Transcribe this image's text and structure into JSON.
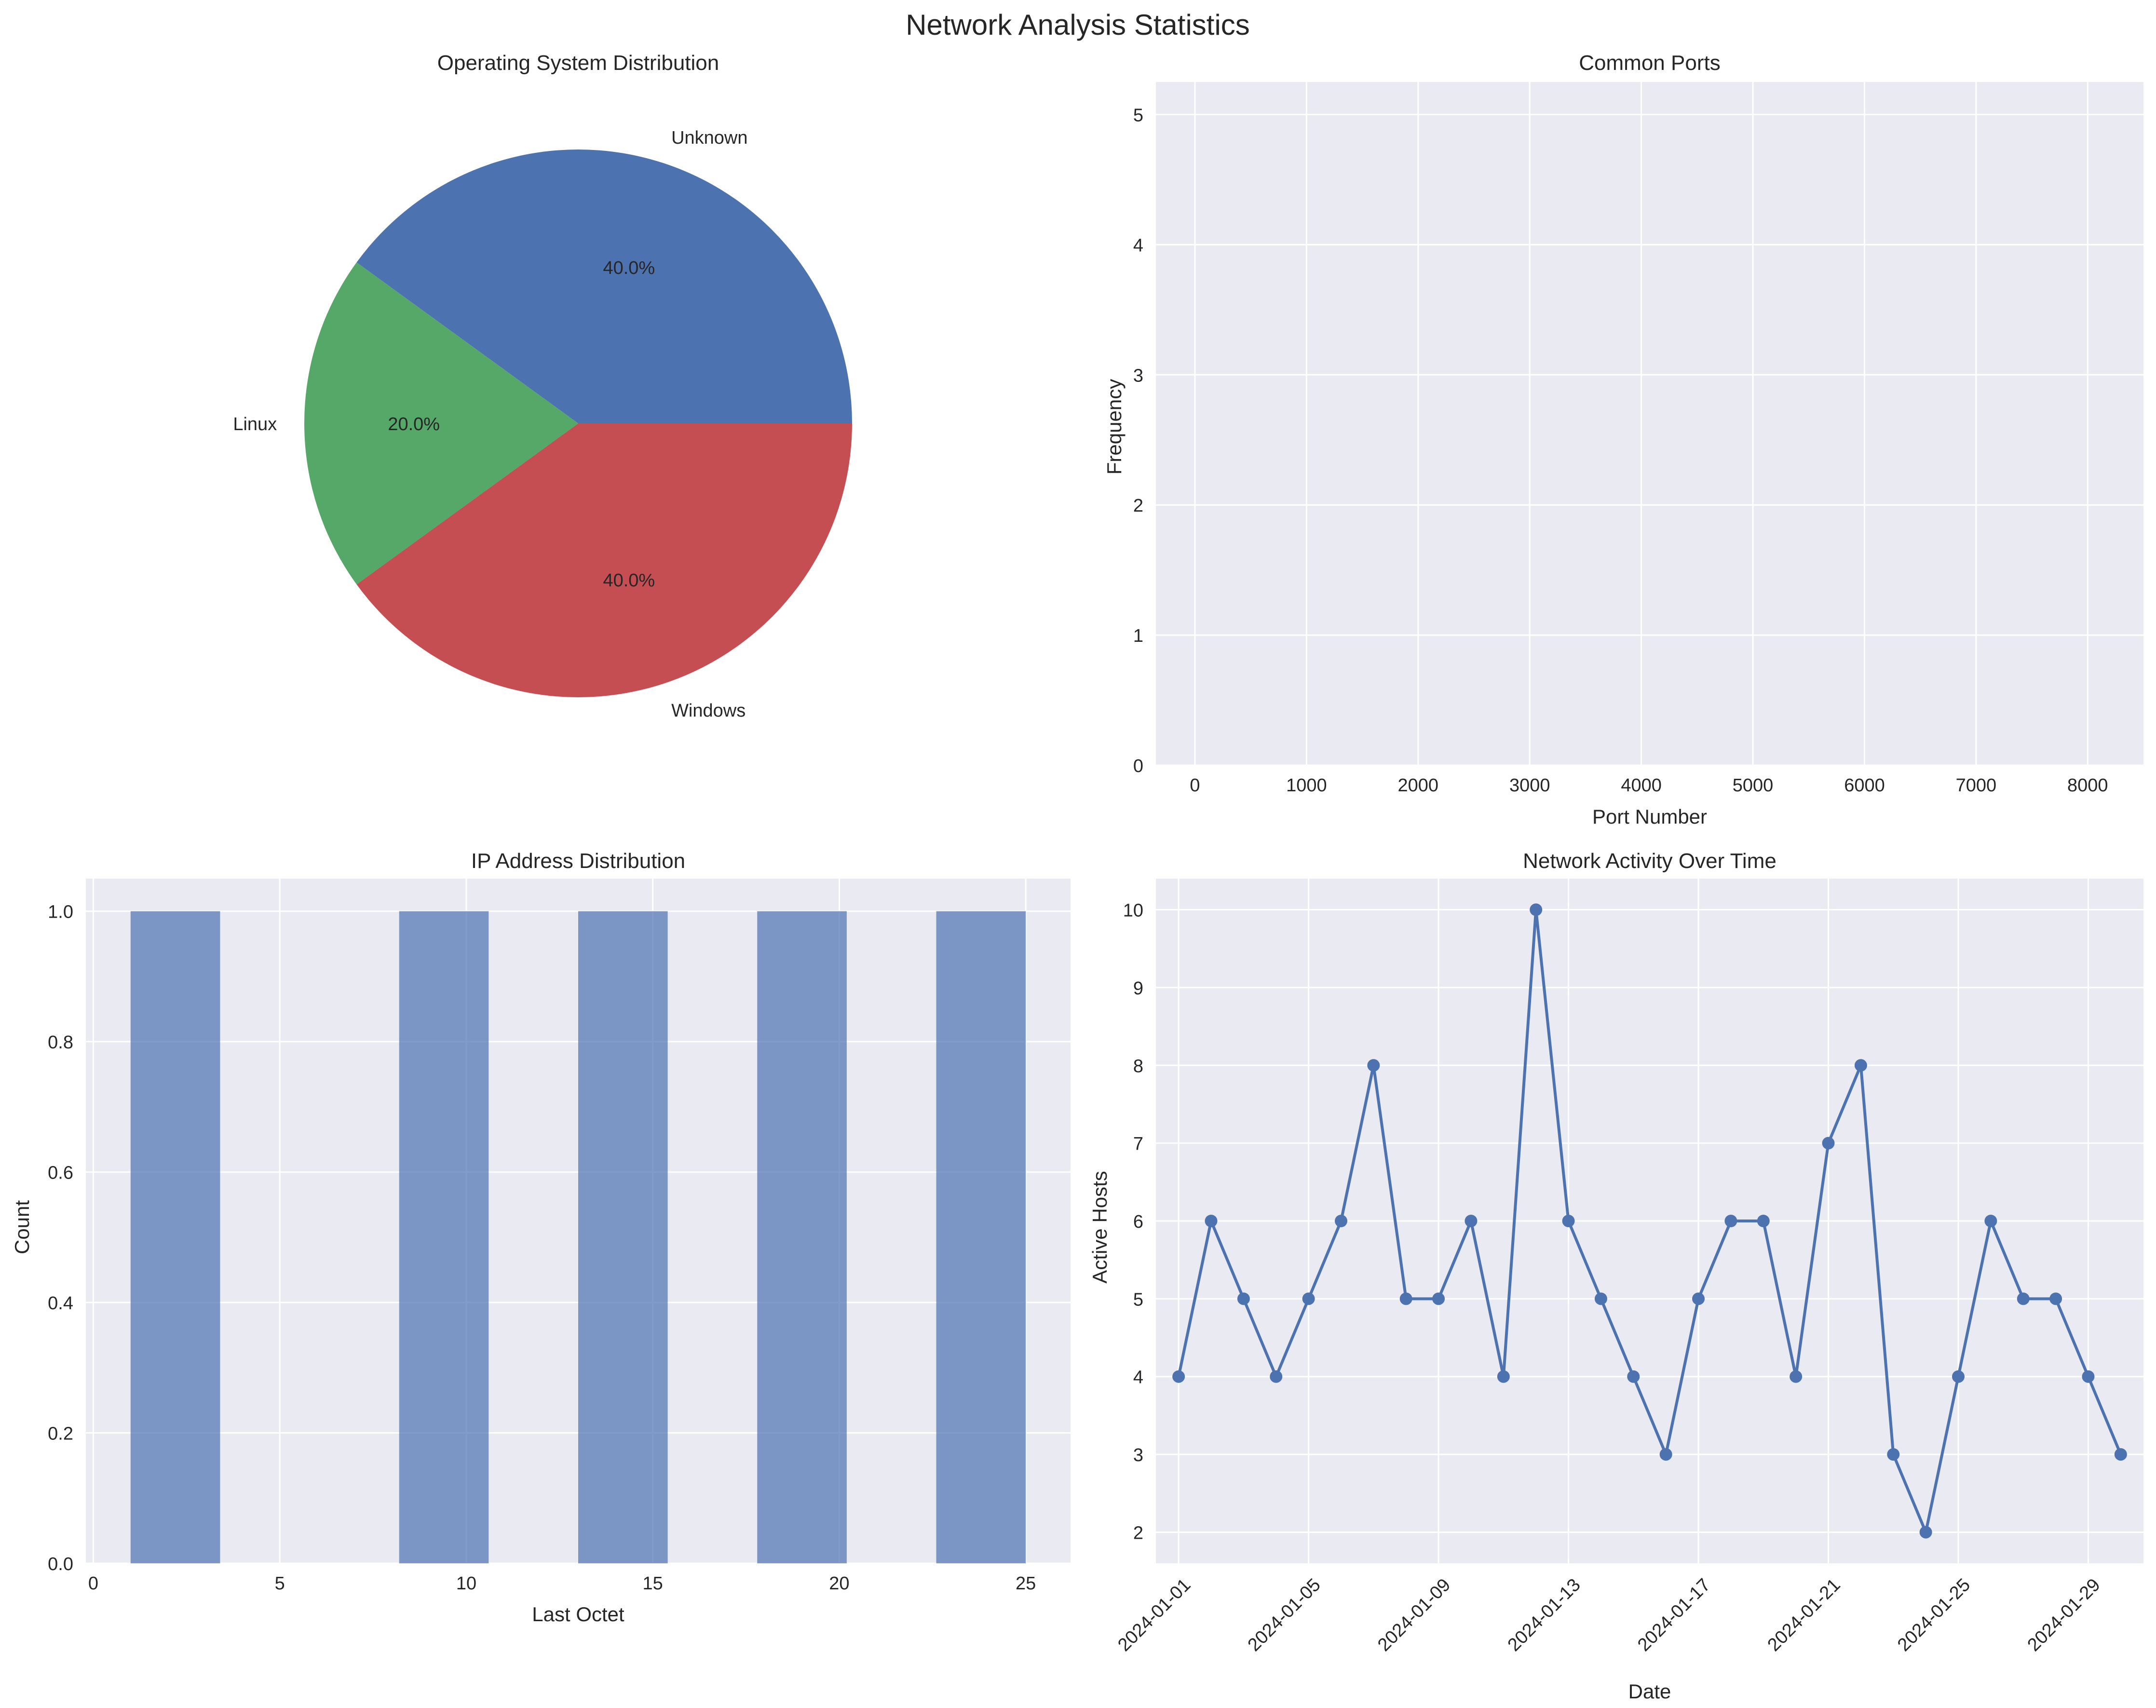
{
  "figure": {
    "title": "Network Analysis Statistics"
  },
  "colors": {
    "blue": "#4c72b0",
    "green": "#55a868",
    "red": "#c44e52",
    "panel_bg": "#eaeaf2",
    "grid": "#ffffff",
    "text": "#262626"
  },
  "chart_data": [
    {
      "type": "pie",
      "title": "Operating System Distribution",
      "slices": [
        {
          "label": "Unknown",
          "value": 40.0,
          "pct_label": "40.0%"
        },
        {
          "label": "Linux",
          "value": 20.0,
          "pct_label": "20.0%"
        },
        {
          "label": "Windows",
          "value": 40.0,
          "pct_label": "40.0%"
        }
      ]
    },
    {
      "type": "bar",
      "title": "Common Ports",
      "xlabel": "Port Number",
      "ylabel": "Frequency",
      "xlim": [
        -350,
        8500
      ],
      "ylim": [
        0,
        5.25
      ],
      "xticks": [
        0,
        1000,
        2000,
        3000,
        4000,
        5000,
        6000,
        7000,
        8000
      ],
      "yticks": [
        0,
        1,
        2,
        3,
        4,
        5
      ],
      "values": []
    },
    {
      "type": "bar",
      "title": "IP Address Distribution",
      "xlabel": "Last Octet",
      "ylabel": "Count",
      "xlim": [
        -0.2,
        26.2
      ],
      "ylim": [
        0,
        1.05
      ],
      "xticks": [
        0,
        5,
        10,
        15,
        20,
        25
      ],
      "ytick_labels": [
        "0.0",
        "0.2",
        "0.4",
        "0.6",
        "0.8",
        "1.0"
      ],
      "yticks": [
        0,
        0.2,
        0.4,
        0.6,
        0.8,
        1.0
      ],
      "bars": [
        {
          "x0": 1.0,
          "x1": 3.4,
          "value": 1
        },
        {
          "x0": 8.2,
          "x1": 10.6,
          "value": 1
        },
        {
          "x0": 13.0,
          "x1": 15.4,
          "value": 1
        },
        {
          "x0": 17.8,
          "x1": 20.2,
          "value": 1
        },
        {
          "x0": 22.6,
          "x1": 25.0,
          "value": 1
        }
      ]
    },
    {
      "type": "line",
      "title": "Network Activity Over Time",
      "xlabel": "Date",
      "ylabel": "Active Hosts",
      "ylim": [
        1.6,
        10.4
      ],
      "yticks": [
        2,
        3,
        4,
        5,
        6,
        7,
        8,
        9,
        10
      ],
      "xlim": [
        0.3,
        30.7
      ],
      "xticks": [
        {
          "day": 1,
          "label": "2024-01-01"
        },
        {
          "day": 5,
          "label": "2024-01-05"
        },
        {
          "day": 9,
          "label": "2024-01-09"
        },
        {
          "day": 13,
          "label": "2024-01-13"
        },
        {
          "day": 17,
          "label": "2024-01-17"
        },
        {
          "day": 21,
          "label": "2024-01-21"
        },
        {
          "day": 25,
          "label": "2024-01-25"
        },
        {
          "day": 29,
          "label": "2024-01-29"
        }
      ],
      "x": [
        1,
        2,
        3,
        4,
        5,
        6,
        7,
        8,
        9,
        10,
        11,
        12,
        13,
        14,
        15,
        16,
        17,
        18,
        19,
        20,
        21,
        22,
        23,
        24,
        25,
        26,
        27,
        28,
        29,
        30
      ],
      "values": [
        4,
        6,
        5,
        4,
        5,
        6,
        8,
        5,
        5,
        6,
        4,
        10,
        6,
        5,
        4,
        3,
        5,
        6,
        6,
        4,
        7,
        8,
        3,
        2,
        4,
        6,
        5,
        5,
        4,
        3
      ]
    }
  ]
}
